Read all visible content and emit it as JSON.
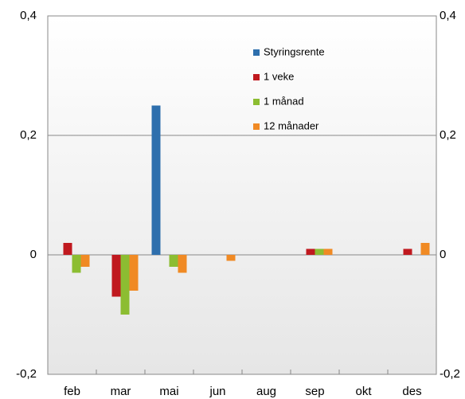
{
  "chart_data": {
    "type": "bar",
    "categories": [
      "feb",
      "mar",
      "mai",
      "jun",
      "aug",
      "sep",
      "okt",
      "des"
    ],
    "series": [
      {
        "name": "Styringsrente",
        "color": "#2e6fad",
        "values": [
          0,
          0,
          0.25,
          0,
          0,
          0,
          0,
          0
        ]
      },
      {
        "name": "1 veke",
        "color": "#c0191f",
        "values": [
          0.02,
          -0.07,
          0,
          0,
          0,
          0.01,
          0,
          0.01
        ]
      },
      {
        "name": "1 månad",
        "color": "#8cbd32",
        "values": [
          -0.03,
          -0.1,
          -0.02,
          0,
          0,
          0.01,
          0,
          0
        ]
      },
      {
        "name": "12 månader",
        "color": "#f08a24",
        "values": [
          -0.02,
          -0.06,
          -0.03,
          -0.01,
          0,
          0.01,
          0,
          0.02
        ]
      }
    ],
    "ylim": [
      -0.2,
      0.4
    ],
    "yticks": [
      {
        "value": -0.2,
        "label": "-0,2"
      },
      0,
      {
        "value": 0.2,
        "label": "0,2"
      },
      {
        "value": 0.4,
        "label": "0,4"
      }
    ],
    "y2lim": [
      -0.2,
      0.4
    ],
    "y2ticks": [
      {
        "value": -0.2,
        "label": "-0,2"
      },
      0,
      {
        "value": 0.2,
        "label": "0,2"
      },
      {
        "value": 0.4,
        "label": "0,4"
      }
    ],
    "grid": true
  }
}
